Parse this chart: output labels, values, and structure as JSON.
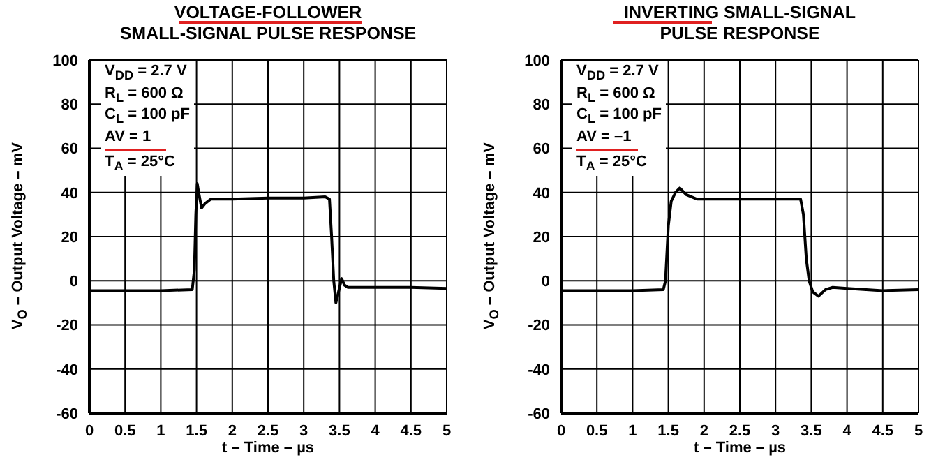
{
  "chart_data": [
    {
      "type": "line",
      "title": "VOLTAGE-FOLLOWER",
      "subtitle": "SMALL-SIGNAL PULSE RESPONSE",
      "xlabel": "t – Time – µs",
      "ylabel": "V$_{O}$ – Output Voltage – mV",
      "annotations": [
        "V$_{DD}$ = 2.7 V",
        "R$_{L}$ = 600 Ω",
        "C$_{L}$ = 100 pF",
        "AV = 1",
        "T$_{A}$ = 25°C"
      ],
      "x": [
        0,
        0.5,
        1,
        1.44,
        1.47,
        1.49,
        1.51,
        1.53,
        1.57,
        1.62,
        1.7,
        2,
        2.5,
        3,
        3.3,
        3.36,
        3.39,
        3.42,
        3.45,
        3.48,
        3.53,
        3.57,
        3.62,
        4,
        4.5,
        5
      ],
      "series": [
        {
          "color": "#000000",
          "values": [
            -4.5,
            -4.5,
            -4.5,
            -4,
            5,
            30,
            44,
            40,
            33,
            35,
            37,
            37,
            37.5,
            37.5,
            38,
            37,
            20,
            0,
            -10,
            -6,
            1,
            -2,
            -3,
            -3,
            -3,
            -3.5
          ]
        }
      ],
      "xlim": [
        0,
        5
      ],
      "xticks": [
        0,
        0.5,
        1,
        1.5,
        2,
        2.5,
        3,
        3.5,
        4,
        4.5,
        5
      ],
      "ylim": [
        -60,
        100
      ],
      "yticks": [
        -60,
        -40,
        -20,
        0,
        20,
        40,
        60,
        80,
        100
      ],
      "grid": true
    },
    {
      "type": "line",
      "title": "INVERTING SMALL-SIGNAL",
      "subtitle": "PULSE RESPONSE",
      "xlabel": "t – Time – µs",
      "ylabel": "V$_{O}$ – Output Voltage – mV",
      "annotations": [
        "V$_{DD}$ = 2.7 V",
        "R$_{L}$ = 600 Ω",
        "C$_{L}$ = 100 pF",
        "AV = –1",
        "T$_{A}$ = 25°C"
      ],
      "x": [
        0,
        0.5,
        1,
        1.43,
        1.46,
        1.5,
        1.54,
        1.6,
        1.66,
        1.75,
        1.9,
        2.5,
        3,
        3.35,
        3.39,
        3.43,
        3.47,
        3.52,
        3.6,
        3.7,
        3.8,
        4,
        4.5,
        5
      ],
      "series": [
        {
          "color": "#000000",
          "values": [
            -4.5,
            -4.5,
            -4.5,
            -4,
            0,
            25,
            36,
            40,
            42,
            39,
            37,
            37,
            37,
            37,
            30,
            10,
            0,
            -5,
            -7,
            -4,
            -3,
            -3.5,
            -4.5,
            -4
          ]
        }
      ],
      "xlim": [
        0,
        5
      ],
      "xticks": [
        0,
        0.5,
        1,
        1.5,
        2,
        2.5,
        3,
        3.5,
        4,
        4.5,
        5
      ],
      "ylim": [
        -60,
        100
      ],
      "yticks": [
        -60,
        -40,
        -20,
        0,
        20,
        40,
        60,
        80,
        100
      ],
      "grid": true
    }
  ]
}
